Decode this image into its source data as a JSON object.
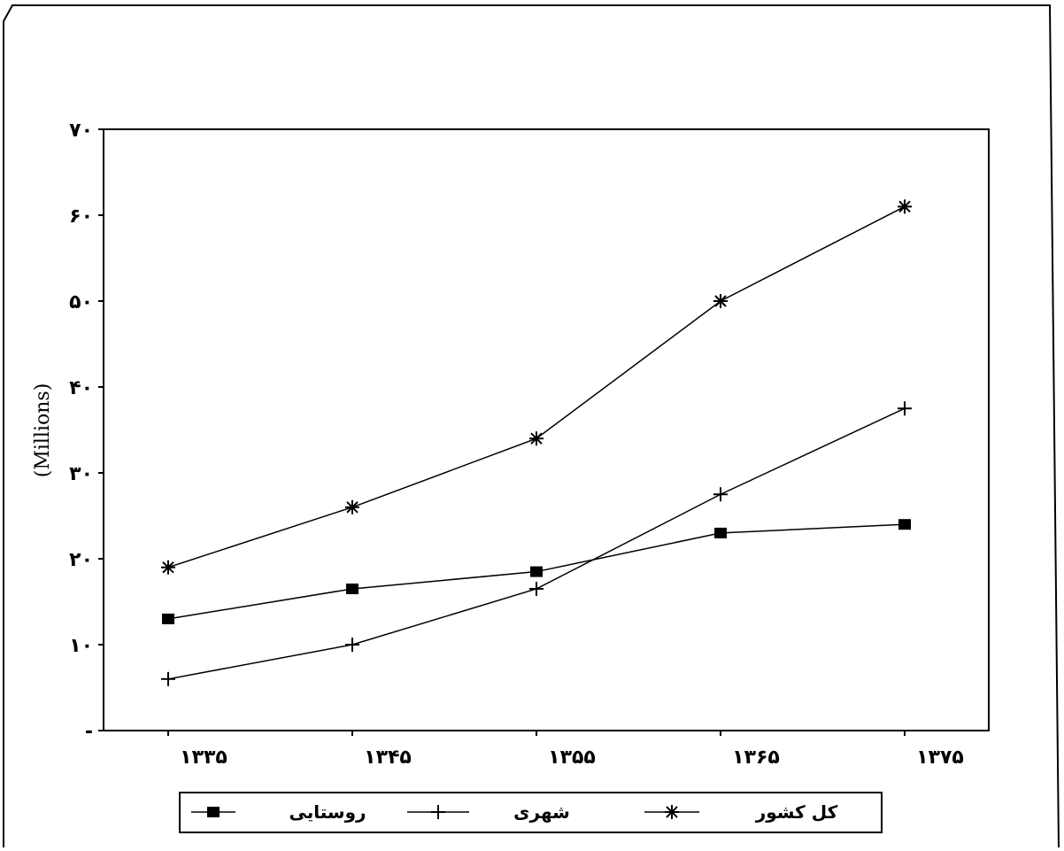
{
  "chart_data": {
    "type": "line",
    "categories": [
      "۱۳۳۵",
      "۱۳۴۵",
      "۱۳۵۵",
      "۱۳۶۵",
      "۱۳۷۵"
    ],
    "ylabel": "(Millions)",
    "yticks": [
      "-",
      "۱۰",
      "۲۰",
      "۳۰",
      "۴۰",
      "۵۰",
      "۶۰",
      "۷۰"
    ],
    "ylim": [
      0,
      70
    ],
    "grid": false,
    "legend_position": "bottom",
    "series": [
      {
        "name": "کل کشور",
        "marker": "asterisk",
        "values": [
          19,
          26,
          34,
          50,
          61
        ]
      },
      {
        "name": "شهری",
        "marker": "plus",
        "values": [
          6,
          10,
          16.5,
          27.5,
          37.5
        ]
      },
      {
        "name": "روستایی",
        "marker": "square",
        "values": [
          13,
          16.5,
          18.5,
          23,
          24
        ]
      }
    ]
  }
}
